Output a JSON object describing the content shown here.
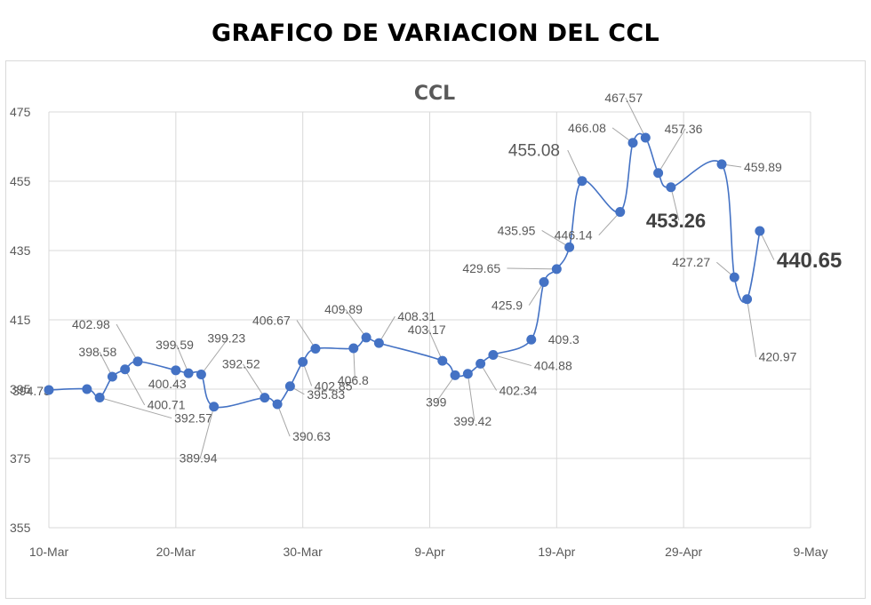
{
  "page": {
    "heading": "GRAFICO DE VARIACION DEL CCL"
  },
  "colors": {
    "series": "#4472c4",
    "leader": "#a6a6a6",
    "grid": "#d9d9d9",
    "text": "#595959"
  },
  "chart_data": {
    "type": "line",
    "title": "CCL",
    "xlabel": "",
    "ylabel": "",
    "smooth": true,
    "grid": true,
    "legend": "none",
    "ylim": [
      355,
      475
    ],
    "y_ticks": [
      "355",
      "375",
      "395",
      "415",
      "435",
      "455",
      "475"
    ],
    "x_ticks": [
      "10-Mar",
      "20-Mar",
      "30-Mar",
      "9-Apr",
      "19-Apr",
      "29-Apr",
      "9-May"
    ],
    "series": [
      {
        "points": [
          {
            "x": "2021-03-10",
            "y": 394.75,
            "label": "394.75"
          },
          {
            "x": "2021-03-13",
            "y": 395.0
          },
          {
            "x": "2021-03-14",
            "y": 392.57,
            "label": "392.57"
          },
          {
            "x": "2021-03-15",
            "y": 398.58,
            "label": "398.58"
          },
          {
            "x": "2021-03-16",
            "y": 400.71,
            "label": "400.71"
          },
          {
            "x": "2021-03-17",
            "y": 402.98,
            "label": "402.98"
          },
          {
            "x": "2021-03-20",
            "y": 400.43,
            "label": "400.43"
          },
          {
            "x": "2021-03-21",
            "y": 399.59,
            "label": "399.59"
          },
          {
            "x": "2021-03-22",
            "y": 399.23,
            "label": "399.23"
          },
          {
            "x": "2021-03-23",
            "y": 389.94,
            "label": "389.94"
          },
          {
            "x": "2021-03-27",
            "y": 392.52,
            "label": "392.52"
          },
          {
            "x": "2021-03-28",
            "y": 390.63,
            "label": "390.63"
          },
          {
            "x": "2021-03-29",
            "y": 395.83,
            "label": "395.83"
          },
          {
            "x": "2021-03-30",
            "y": 402.85,
            "label": "402.85"
          },
          {
            "x": "2021-03-31",
            "y": 406.67,
            "label": "406.67"
          },
          {
            "x": "2021-04-03",
            "y": 406.8,
            "label": "406.8"
          },
          {
            "x": "2021-04-04",
            "y": 409.89,
            "label": "409.89"
          },
          {
            "x": "2021-04-05",
            "y": 408.31,
            "label": "408.31"
          },
          {
            "x": "2021-04-10",
            "y": 403.17,
            "label": "403.17"
          },
          {
            "x": "2021-04-11",
            "y": 399,
            "label": "399"
          },
          {
            "x": "2021-04-12",
            "y": 399.42,
            "label": "399.42"
          },
          {
            "x": "2021-04-13",
            "y": 402.34,
            "label": "402.34"
          },
          {
            "x": "2021-04-14",
            "y": 404.88,
            "label": "404.88"
          },
          {
            "x": "2021-04-17",
            "y": 409.3,
            "label": "409.3"
          },
          {
            "x": "2021-04-18",
            "y": 425.9,
            "label": "425.9"
          },
          {
            "x": "2021-04-19",
            "y": 429.65,
            "label": "429.65"
          },
          {
            "x": "2021-04-20",
            "y": 435.95,
            "label": "435.95"
          },
          {
            "x": "2021-04-21",
            "y": 455.08,
            "label": "455.08"
          },
          {
            "x": "2021-04-24",
            "y": 446.14,
            "label": "446.14"
          },
          {
            "x": "2021-04-25",
            "y": 466.08,
            "label": "466.08"
          },
          {
            "x": "2021-04-26",
            "y": 467.57,
            "label": "467.57"
          },
          {
            "x": "2021-04-27",
            "y": 457.36,
            "label": "457.36"
          },
          {
            "x": "2021-04-28",
            "y": 453.26,
            "label": "453.26"
          },
          {
            "x": "2021-05-02",
            "y": 459.89,
            "label": "459.89"
          },
          {
            "x": "2021-05-03",
            "y": 427.27,
            "label": "427.27"
          },
          {
            "x": "2021-05-04",
            "y": 420.97,
            "label": "420.97"
          },
          {
            "x": "2021-05-05",
            "y": 440.65,
            "label": "440.65"
          }
        ]
      }
    ]
  }
}
